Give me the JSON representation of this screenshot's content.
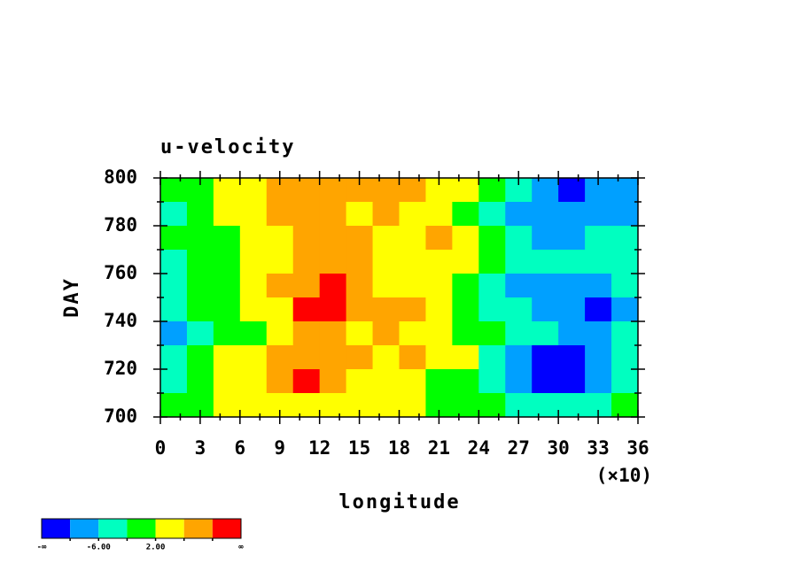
{
  "chart_data": {
    "type": "heatmap",
    "title": "u-velocity",
    "xlabel": "longitude",
    "ylabel": "DAY",
    "x_multiplier": "(×10)",
    "xlim": [
      0,
      360
    ],
    "ylim": [
      700,
      800
    ],
    "xticks": [
      0,
      {
        "value": 30,
        "label": "3"
      },
      {
        "value": 60,
        "label": "6"
      },
      {
        "value": 90,
        "label": "9"
      },
      {
        "value": 120,
        "label": "12"
      },
      {
        "value": 150,
        "label": "15"
      },
      {
        "value": 180,
        "label": "18"
      },
      {
        "value": 210,
        "label": "21"
      },
      {
        "value": 240,
        "label": "24"
      },
      {
        "value": 270,
        "label": "27"
      },
      {
        "value": 300,
        "label": "30"
      },
      {
        "value": 330,
        "label": "33"
      },
      {
        "value": 360,
        "label": "36"
      }
    ],
    "xticks_minor": [
      15,
      45,
      75,
      105,
      135,
      165,
      195,
      225,
      255,
      285,
      315,
      345
    ],
    "yticks": [
      700,
      720,
      740,
      760,
      780,
      800
    ],
    "yticks_minor": [
      710,
      730,
      750,
      770,
      790
    ],
    "x": [
      10,
      30,
      50,
      70,
      90,
      110,
      130,
      150,
      170,
      190,
      210,
      230,
      250,
      270,
      290,
      310,
      330,
      350
    ],
    "y": [
      795,
      785,
      775,
      765,
      755,
      745,
      735,
      725,
      715,
      705
    ],
    "z": [
      [
        -2,
        0,
        2,
        4,
        7,
        8,
        6,
        7,
        8,
        6,
        4,
        2,
        -2,
        -6,
        -10,
        -11,
        -8,
        -8
      ],
      [
        -3,
        0,
        3,
        5,
        8,
        6,
        7,
        5,
        6,
        4,
        3,
        0,
        -4,
        -8,
        -10,
        -8,
        -10,
        -7
      ],
      [
        -1,
        -2,
        1,
        3,
        5,
        7,
        8,
        6,
        4,
        5,
        6,
        3,
        -2,
        -6,
        -8,
        -7,
        -6,
        -6
      ],
      [
        -4,
        -1,
        0,
        2,
        4,
        6,
        9,
        8,
        5,
        4,
        3,
        3,
        -1,
        -4,
        -6,
        -5,
        -6,
        -4
      ],
      [
        -3,
        -1,
        1,
        3,
        8,
        9,
        10,
        7,
        5,
        4,
        2,
        1,
        -4,
        -8,
        -10,
        -10,
        -8,
        -6
      ],
      [
        -5,
        -2,
        0,
        2,
        5,
        10,
        11,
        7,
        8,
        6,
        2,
        0,
        -3,
        -6,
        -9,
        -8,
        -11,
        -9
      ],
      [
        -8,
        -4,
        -1,
        1,
        4,
        6,
        7,
        5,
        6,
        4,
        3,
        1,
        -2,
        -5,
        -6,
        -7,
        -8,
        -6
      ],
      [
        -4,
        -2,
        2,
        4,
        6,
        8,
        7,
        6,
        5,
        6,
        3,
        2,
        -4,
        -8,
        -11,
        -12,
        -9,
        -6
      ],
      [
        -3,
        0,
        3,
        5,
        8,
        10,
        8,
        5,
        4,
        3,
        1,
        0,
        -5,
        -10,
        -11,
        -12,
        -8,
        -4
      ],
      [
        -1,
        1,
        3,
        2,
        4,
        5,
        3,
        2,
        3,
        2,
        1,
        0,
        -2,
        -4,
        -6,
        -5,
        -3,
        -2
      ]
    ],
    "levels": [
      -10,
      -6,
      -2,
      2,
      6,
      10
    ],
    "colors": [
      "#0000ff",
      "#00a0ff",
      "#00ffc0",
      "#00ff00",
      "#ffff00",
      "#ffa500",
      "#ff0000"
    ],
    "colorbar_low_label": "-∞",
    "colorbar_high_label": "∞",
    "level_labels": [
      {
        "value": -6,
        "label": "-6.00"
      },
      {
        "value": 2,
        "label": "2.00"
      }
    ]
  }
}
